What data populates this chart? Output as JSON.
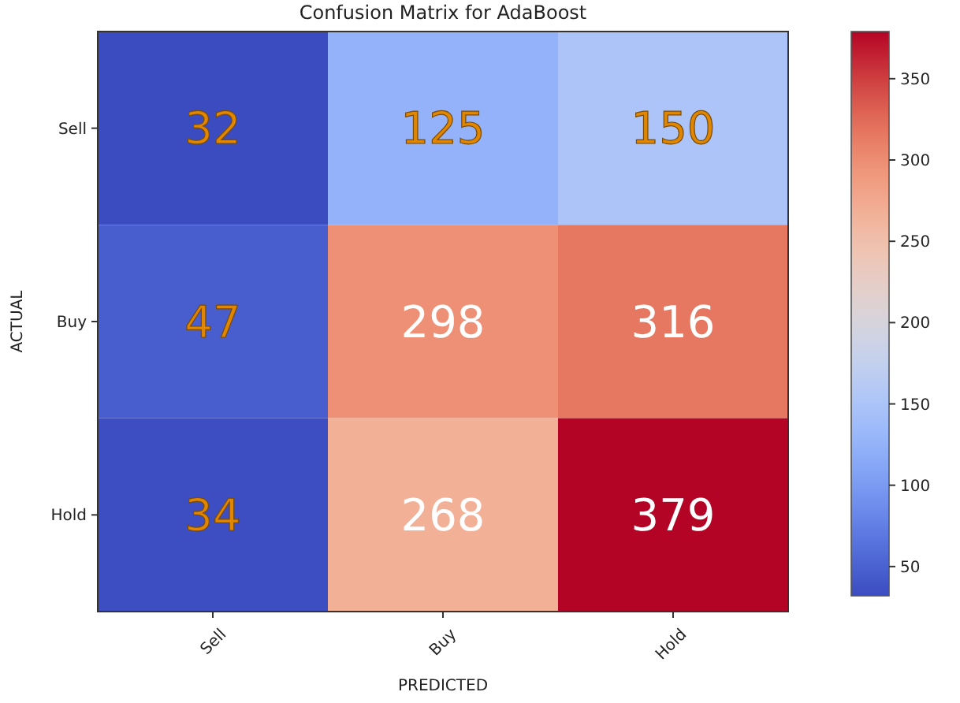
{
  "chart_data": {
    "type": "heatmap",
    "title": "Confusion Matrix for AdaBoost",
    "xlabel": "PREDICTED",
    "ylabel": "ACTUAL",
    "categories": [
      "Sell",
      "Buy",
      "Hold"
    ],
    "y_categories": [
      "Sell",
      "Buy",
      "Hold"
    ],
    "cells": [
      [
        32,
        125,
        150
      ],
      [
        47,
        298,
        316
      ],
      [
        34,
        268,
        379
      ]
    ],
    "clim": [
      32,
      379
    ],
    "cticks": [
      50,
      100,
      150,
      200,
      250,
      300,
      350
    ],
    "data_labels": true
  }
}
